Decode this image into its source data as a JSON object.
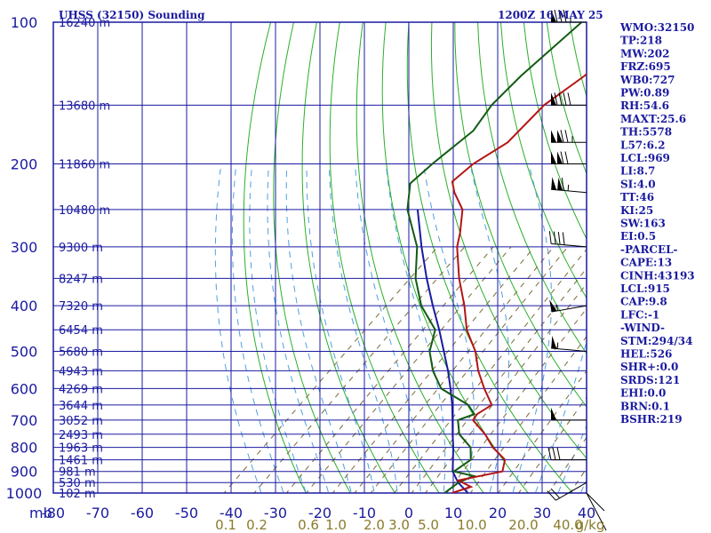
{
  "header": {
    "station": "UHSS (32150) Sounding",
    "time": "1200Z 16 MAY 25"
  },
  "axis": {
    "unit_label": "mb",
    "mixing_unit": "g/kg"
  },
  "indices": [
    "WMO:32150",
    "TP:218",
    "MW:202",
    "FRZ:695",
    "WB0:727",
    "PW:0.89",
    "RH:54.6",
    "MAXT:25.6",
    "TH:5578",
    "L57:6.2",
    "LCL:969",
    "LI:8.7",
    "SI:4.0",
    "TT:46",
    "KI:25",
    "SW:163",
    "EI:0.5",
    "-PARCEL-",
    "CAPE:13",
    "CINH:43193",
    "LCL:915",
    "CAP:9.8",
    "LFC:-1",
    "-WIND-",
    "STM:294/34",
    "HEL:526",
    "SHR+:0.0",
    "SRDS:121",
    "EHI:0.0",
    "BRN:0.1",
    "BSHR:219"
  ],
  "chart_data": {
    "type": "line",
    "chart_kind": "skew-T log-p",
    "y_log_scale": true,
    "ylim": [
      1000,
      100
    ],
    "xlim": [
      -80,
      40
    ],
    "pressure_levels": [
      100,
      200,
      300,
      400,
      500,
      600,
      700,
      800,
      900,
      1000
    ],
    "pressure_tick_labels": [
      "100",
      "200",
      "300",
      "400",
      "500",
      "600",
      "700",
      "800",
      "900",
      "1000"
    ],
    "temperature_ticks": [
      -80,
      -70,
      -60,
      -50,
      -40,
      -30,
      -20,
      -10,
      0,
      10,
      20,
      30,
      40
    ],
    "temperature_tick_labels": [
      "-80",
      "-70",
      "-60",
      "-50",
      "-40",
      "-30",
      "-20",
      "-10",
      "0",
      "10",
      "20",
      "30",
      "40"
    ],
    "mixing_ratio_labels": [
      "0.1",
      "0.2",
      "0.6",
      "1.0",
      "2.0",
      "3.0",
      "5.0",
      "10.0",
      "20.0",
      "40.0"
    ],
    "height_labels": [
      {
        "p": 100,
        "text": "16240 m"
      },
      {
        "p": 150,
        "text": "13680 m"
      },
      {
        "p": 200,
        "text": "11860 m"
      },
      {
        "p": 250,
        "text": "10480 m"
      },
      {
        "p": 300,
        "text": "9300 m"
      },
      {
        "p": 350,
        "text": "8247 m"
      },
      {
        "p": 400,
        "text": "7320 m"
      },
      {
        "p": 450,
        "text": "6454 m"
      },
      {
        "p": 500,
        "text": "5680 m"
      },
      {
        "p": 550,
        "text": "4943 m"
      },
      {
        "p": 600,
        "text": "4269 m"
      },
      {
        "p": 650,
        "text": "3644 m"
      },
      {
        "p": 700,
        "text": "3052 m"
      },
      {
        "p": 750,
        "text": "2493 m"
      },
      {
        "p": 800,
        "text": "1963 m"
      },
      {
        "p": 850,
        "text": "1461 m"
      },
      {
        "p": 900,
        "text": "981 m"
      },
      {
        "p": 950,
        "text": "530 m"
      },
      {
        "p": 1000,
        "text": "102 m"
      }
    ],
    "temperature_profile": [
      {
        "p": 1000,
        "t": 9.7
      },
      {
        "p": 970,
        "t": 12.5
      },
      {
        "p": 940,
        "t": 8.1
      },
      {
        "p": 900,
        "t": 15.9
      },
      {
        "p": 850,
        "t": 13.7
      },
      {
        "p": 800,
        "t": 8.0
      },
      {
        "p": 750,
        "t": 3.1
      },
      {
        "p": 700,
        "t": -3.0
      },
      {
        "p": 680,
        "t": -3.5
      },
      {
        "p": 650,
        "t": -2.4
      },
      {
        "p": 600,
        "t": -8.0
      },
      {
        "p": 550,
        "t": -13.6
      },
      {
        "p": 500,
        "t": -18.9
      },
      {
        "p": 450,
        "t": -26.0
      },
      {
        "p": 400,
        "t": -32.3
      },
      {
        "p": 350,
        "t": -40.0
      },
      {
        "p": 300,
        "t": -48.0
      },
      {
        "p": 280,
        "t": -50.7
      },
      {
        "p": 250,
        "t": -55.7
      },
      {
        "p": 230,
        "t": -61.6
      },
      {
        "p": 218,
        "t": -64.7
      },
      {
        "p": 200,
        "t": -64.2
      },
      {
        "p": 180,
        "t": -61.6
      },
      {
        "p": 150,
        "t": -62.3
      },
      {
        "p": 130,
        "t": -60.2
      },
      {
        "p": 120,
        "t": -60.0
      },
      {
        "p": 100,
        "t": -60.4
      }
    ],
    "dewpoint_profile": [
      {
        "p": 1000,
        "td": 8.0
      },
      {
        "p": 950,
        "td": 8.7
      },
      {
        "p": 920,
        "td": 10.5
      },
      {
        "p": 900,
        "td": 5.0
      },
      {
        "p": 850,
        "td": 6.0
      },
      {
        "p": 800,
        "td": 3.0
      },
      {
        "p": 750,
        "td": -2.7
      },
      {
        "p": 700,
        "td": -6.4
      },
      {
        "p": 680,
        "td": -4.1
      },
      {
        "p": 650,
        "td": -7.7
      },
      {
        "p": 600,
        "td": -17.7
      },
      {
        "p": 550,
        "td": -23.8
      },
      {
        "p": 500,
        "td": -29.2
      },
      {
        "p": 450,
        "td": -33.1
      },
      {
        "p": 400,
        "td": -42.0
      },
      {
        "p": 350,
        "td": -49.8
      },
      {
        "p": 300,
        "td": -57.0
      },
      {
        "p": 250,
        "td": -68.1
      },
      {
        "p": 220,
        "td": -73.7
      },
      {
        "p": 200,
        "td": -73.4
      },
      {
        "p": 170,
        "td": -72.1
      },
      {
        "p": 150,
        "td": -74.1
      },
      {
        "p": 130,
        "td": -74.5
      },
      {
        "p": 100,
        "td": -73.7
      }
    ],
    "parcel_profile": [
      {
        "p": 1000,
        "t": 13.3
      },
      {
        "p": 950,
        "t": 8.6
      },
      {
        "p": 900,
        "t": 4.7
      },
      {
        "p": 850,
        "t": 2.0
      },
      {
        "p": 800,
        "t": -0.9
      },
      {
        "p": 750,
        "t": -4.2
      },
      {
        "p": 700,
        "t": -7.6
      },
      {
        "p": 650,
        "t": -11.3
      },
      {
        "p": 600,
        "t": -15.6
      },
      {
        "p": 550,
        "t": -20.4
      },
      {
        "p": 500,
        "t": -26.0
      },
      {
        "p": 450,
        "t": -32.2
      },
      {
        "p": 400,
        "t": -39.4
      },
      {
        "p": 350,
        "t": -47.3
      },
      {
        "p": 300,
        "t": -56.0
      },
      {
        "p": 250,
        "t": -65.8
      }
    ],
    "colors": {
      "frame": "#1a1aa0",
      "isobar": "#1a1aa0",
      "isotherm": "#1a1aa0",
      "dry_adiabat": "#2ab02a",
      "moist_adiabat": "#4f9fe0",
      "mixing_ratio": "#7a6a3a",
      "temperature": "#b41414",
      "dewpoint": "#145a14",
      "parcel": "#1a1aa0",
      "wind": "#000000"
    },
    "winds": [
      {
        "p": 100,
        "dir": 270,
        "spd": 85
      },
      {
        "p": 150,
        "dir": 270,
        "spd": 90
      },
      {
        "p": 180,
        "dir": 270,
        "spd": 125
      },
      {
        "p": 200,
        "dir": 270,
        "spd": 120
      },
      {
        "p": 230,
        "dir": 275,
        "spd": 115
      },
      {
        "p": 300,
        "dir": 275,
        "spd": 40
      },
      {
        "p": 400,
        "dir": 260,
        "spd": 55
      },
      {
        "p": 500,
        "dir": 275,
        "spd": 55
      },
      {
        "p": 700,
        "dir": 270,
        "spd": 50
      },
      {
        "p": 850,
        "dir": 270,
        "spd": 30
      },
      {
        "p": 950,
        "dir": 240,
        "spd": 20
      }
    ]
  }
}
